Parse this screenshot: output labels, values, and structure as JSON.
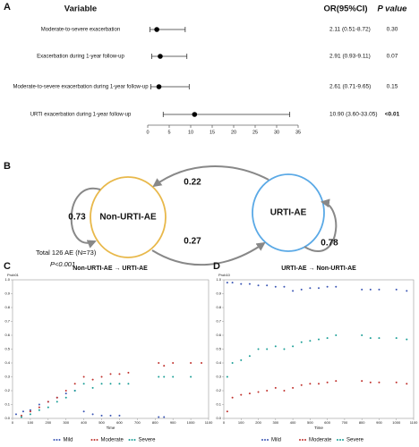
{
  "chart_data": [
    {
      "type": "forest",
      "panel_label": "A",
      "headers": [
        "Variable",
        "OR(95%CI)",
        "P value"
      ],
      "categories": [
        "Moderate-to-severe exacerbation",
        "Exacerbation during 1-year follow-up",
        "Moderate-to-severe exacerbation during 1-year follow-up",
        "URTI exacerbation during 1-year follow-up"
      ],
      "values": [
        2.11,
        2.91,
        2.61,
        10.9
      ],
      "lower": [
        0.51,
        0.93,
        0.71,
        3.6
      ],
      "upper": [
        8.72,
        9.11,
        9.65,
        33.05
      ],
      "value_labels": [
        "2.11 (0.51-8.72)",
        "2.91 (0.93-9.11)",
        "2.61 (0.71-9.65)",
        "10.90 (3.60-33.05)"
      ],
      "p_values": [
        "0.30",
        "0.07",
        "0.15",
        "<0.01"
      ],
      "color": "#000000",
      "xlim": [
        0,
        35
      ],
      "xticks": [
        0,
        5,
        10,
        15,
        20,
        25,
        30,
        35
      ]
    },
    {
      "type": "scatter",
      "panel_label": "C",
      "title": "Non-URTI-AE → URTI-AE",
      "x_label": "Time",
      "y_label": "Prob01",
      "xlim": [
        0,
        1100
      ],
      "xticks": [
        0,
        100,
        200,
        300,
        400,
        500,
        600,
        700,
        800,
        900,
        1000,
        1100
      ],
      "ylim": [
        0,
        1
      ],
      "yticks": [
        {
          "value": 0,
          "label": "0.0"
        },
        0.1,
        0.2,
        0.3,
        0.4,
        0.5,
        0.6,
        0.7,
        0.8,
        0.9,
        {
          "value": 1,
          "label": "1.0"
        }
      ],
      "legend": "bottom",
      "series": [
        {
          "name": "Mild",
          "color": "#3a55b4",
          "x": [
            20,
            60,
            100,
            150,
            200,
            250,
            300,
            350,
            400,
            450,
            500,
            550,
            600,
            820,
            850
          ],
          "values": [
            0.03,
            0.05,
            0.06,
            0.1,
            0.12,
            0.15,
            0.18,
            0.2,
            0.05,
            0.03,
            0.02,
            0.02,
            0.02,
            0.01,
            0.01
          ]
        },
        {
          "name": "Moderate",
          "color": "#c0302c",
          "x": [
            50,
            100,
            150,
            200,
            250,
            300,
            350,
            400,
            450,
            500,
            550,
            600,
            650,
            820,
            850,
            900,
            1000,
            1060
          ],
          "values": [
            0.02,
            0.05,
            0.08,
            0.12,
            0.15,
            0.2,
            0.25,
            0.3,
            0.28,
            0.3,
            0.32,
            0.32,
            0.33,
            0.4,
            0.38,
            0.4,
            0.4,
            0.4
          ]
        },
        {
          "name": "Severe",
          "color": "#1a9e96",
          "x": [
            50,
            100,
            150,
            200,
            250,
            300,
            350,
            400,
            450,
            500,
            550,
            600,
            650,
            820,
            850,
            900,
            1000
          ],
          "values": [
            0.01,
            0.03,
            0.06,
            0.08,
            0.12,
            0.15,
            0.2,
            0.25,
            0.22,
            0.25,
            0.25,
            0.25,
            0.25,
            0.3,
            0.3,
            0.3,
            0.3
          ]
        }
      ]
    },
    {
      "type": "scatter",
      "panel_label": "D",
      "title": "URTI-AE → Non-URTI-AE",
      "x_label": "Time",
      "y_label": "Prob10",
      "xlim": [
        0,
        1100
      ],
      "xticks": [
        0,
        100,
        200,
        300,
        400,
        500,
        600,
        700,
        800,
        900,
        1000,
        1100
      ],
      "ylim": [
        0,
        1
      ],
      "yticks": [
        {
          "value": 0,
          "label": "0.0"
        },
        0.1,
        0.2,
        0.3,
        0.4,
        0.5,
        0.6,
        0.7,
        0.8,
        0.9,
        {
          "value": 1,
          "label": "1.0"
        }
      ],
      "legend": "bottom",
      "series": [
        {
          "name": "Mild",
          "color": "#3a55b4",
          "x": [
            20,
            50,
            100,
            150,
            200,
            250,
            300,
            350,
            400,
            450,
            500,
            550,
            600,
            650,
            800,
            850,
            900,
            1000,
            1060
          ],
          "values": [
            0.98,
            0.98,
            0.97,
            0.97,
            0.96,
            0.96,
            0.95,
            0.95,
            0.92,
            0.93,
            0.94,
            0.94,
            0.95,
            0.95,
            0.93,
            0.93,
            0.93,
            0.93,
            0.92
          ]
        },
        {
          "name": "Moderate",
          "color": "#c0302c",
          "x": [
            20,
            50,
            100,
            150,
            200,
            250,
            300,
            350,
            400,
            450,
            500,
            550,
            600,
            650,
            800,
            850,
            900,
            1000,
            1060
          ],
          "values": [
            0.05,
            0.15,
            0.17,
            0.18,
            0.19,
            0.2,
            0.22,
            0.2,
            0.22,
            0.24,
            0.25,
            0.25,
            0.26,
            0.27,
            0.27,
            0.26,
            0.26,
            0.26,
            0.25
          ]
        },
        {
          "name": "Severe",
          "color": "#1a9e96",
          "x": [
            20,
            50,
            100,
            150,
            200,
            250,
            300,
            350,
            400,
            450,
            500,
            550,
            600,
            650,
            800,
            850,
            900,
            1000,
            1060
          ],
          "values": [
            0.3,
            0.4,
            0.42,
            0.45,
            0.5,
            0.5,
            0.52,
            0.5,
            0.52,
            0.55,
            0.56,
            0.57,
            0.58,
            0.6,
            0.6,
            0.58,
            0.58,
            0.58,
            0.57
          ]
        }
      ]
    }
  ],
  "diagram": {
    "panel_label": "B",
    "nodes": [
      {
        "label": "Non-URTI-AE"
      },
      {
        "label": "URTI-AE"
      }
    ],
    "edges": [
      {
        "label": 0.73
      },
      {
        "label": 0.22
      },
      {
        "label": 0.27
      },
      {
        "label": 0.78
      }
    ],
    "note": "Total 126 AE (N=73)",
    "p_value": "P<0.001"
  }
}
